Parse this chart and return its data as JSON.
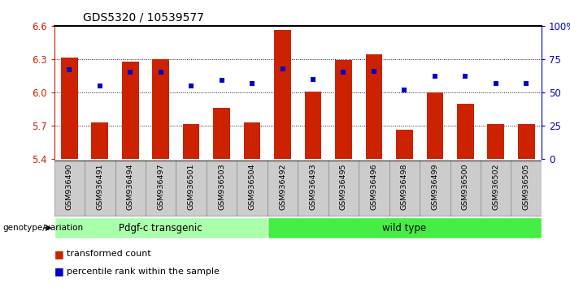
{
  "title": "GDS5320 / 10539577",
  "samples": [
    "GSM936490",
    "GSM936491",
    "GSM936494",
    "GSM936497",
    "GSM936501",
    "GSM936503",
    "GSM936504",
    "GSM936492",
    "GSM936493",
    "GSM936495",
    "GSM936496",
    "GSM936498",
    "GSM936499",
    "GSM936500",
    "GSM936502",
    "GSM936505"
  ],
  "bar_values": [
    6.315,
    5.73,
    6.275,
    6.3,
    5.715,
    5.865,
    5.73,
    6.565,
    6.01,
    6.295,
    6.345,
    5.665,
    6.0,
    5.9,
    5.72,
    5.72
  ],
  "dot_pct": [
    67,
    55,
    65,
    65,
    55,
    59,
    57,
    68,
    60,
    65,
    66,
    52,
    62,
    62,
    57,
    57
  ],
  "ylim": [
    5.4,
    6.6
  ],
  "y2lim": [
    0,
    100
  ],
  "yticks_left": [
    5.4,
    5.7,
    6.0,
    6.3,
    6.6
  ],
  "y2ticks": [
    0,
    25,
    50,
    75,
    100
  ],
  "bar_color": "#cc2200",
  "dot_color": "#0000cc",
  "group1_label": "Pdgf-c transgenic",
  "group2_label": "wild type",
  "group1_count": 7,
  "group2_count": 9,
  "group1_color": "#aaffaa",
  "group2_color": "#44ee44",
  "genotype_label": "genotype/variation",
  "legend_bar": "transformed count",
  "legend_dot": "percentile rank within the sample",
  "bar_width": 0.55,
  "tick_label_bg": "#cccccc",
  "tick_label_border": "#888888"
}
